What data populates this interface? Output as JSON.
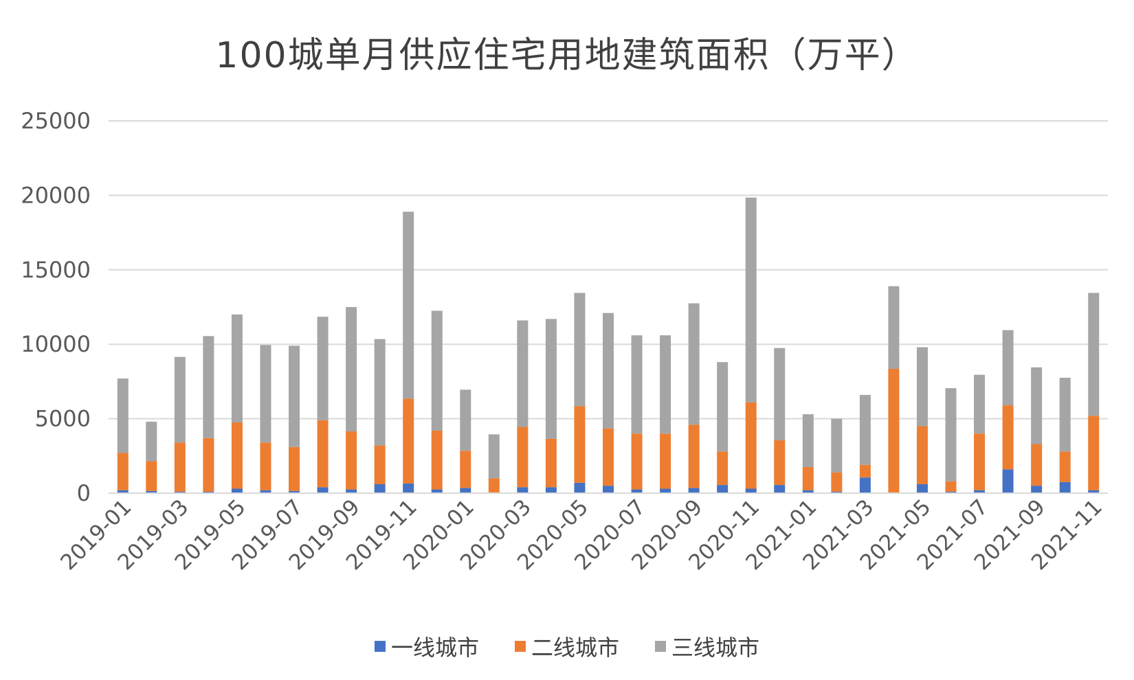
{
  "chart_data": {
    "type": "bar",
    "stacked": true,
    "title": "100城单月供应住宅用地建筑面积（万平）",
    "xlabel": "",
    "ylabel": "",
    "ylim": [
      0,
      25000
    ],
    "yticks": [
      0,
      5000,
      10000,
      15000,
      20000,
      25000
    ],
    "grid": true,
    "legend_position": "bottom",
    "categories": [
      "2019-01",
      "2019-02",
      "2019-03",
      "2019-04",
      "2019-05",
      "2019-06",
      "2019-07",
      "2019-08",
      "2019-09",
      "2019-10",
      "2019-11",
      "2019-12",
      "2020-01",
      "2020-02",
      "2020-03",
      "2020-04",
      "2020-05",
      "2020-06",
      "2020-07",
      "2020-08",
      "2020-09",
      "2020-10",
      "2020-11",
      "2020-12",
      "2021-01",
      "2021-02",
      "2021-03",
      "2021-04",
      "2021-05",
      "2021-06",
      "2021-07",
      "2021-08",
      "2021-09",
      "2021-10",
      "2021-11"
    ],
    "tick_labels": [
      "2019-01",
      "2019-03",
      "2019-05",
      "2019-07",
      "2019-09",
      "2019-11",
      "2020-01",
      "2020-03",
      "2020-05",
      "2020-07",
      "2020-09",
      "2020-11",
      "2021-01",
      "2021-03",
      "2021-05",
      "2021-07",
      "2021-09",
      "2021-11"
    ],
    "series": [
      {
        "name": "一线城市",
        "color": "#4472C4",
        "values": [
          200,
          150,
          100,
          100,
          300,
          200,
          150,
          400,
          250,
          600,
          650,
          250,
          350,
          50,
          400,
          400,
          700,
          500,
          250,
          300,
          350,
          550,
          300,
          550,
          200,
          100,
          1050,
          50,
          600,
          100,
          200,
          1600,
          500,
          750,
          200
        ]
      },
      {
        "name": "二线城市",
        "color": "#ED7D31",
        "values": [
          2500,
          2000,
          3300,
          3600,
          4450,
          3200,
          2950,
          4500,
          3900,
          2600,
          5700,
          3950,
          2500,
          950,
          4050,
          3250,
          5150,
          3850,
          3750,
          3700,
          4250,
          2250,
          5800,
          3000,
          1550,
          1300,
          850,
          8300,
          3900,
          700,
          3800,
          4300,
          2800,
          2050,
          5000
        ]
      },
      {
        "name": "三线城市",
        "color": "#A5A5A5",
        "values": [
          5000,
          2650,
          5750,
          6850,
          7250,
          6550,
          6800,
          6950,
          8350,
          7150,
          12550,
          8050,
          4100,
          2950,
          7150,
          8050,
          7600,
          7750,
          6600,
          6600,
          8150,
          6000,
          13750,
          6200,
          3550,
          3600,
          4700,
          5550,
          5300,
          6250,
          3950,
          5050,
          5150,
          4950,
          8250
        ]
      }
    ]
  }
}
